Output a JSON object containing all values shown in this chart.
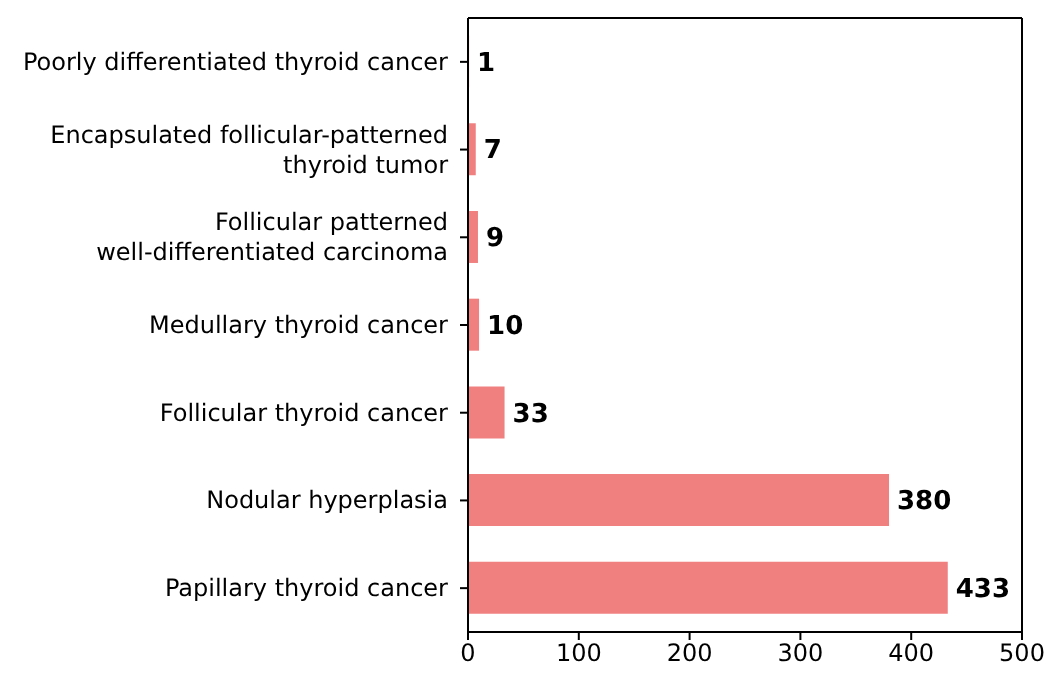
{
  "chart_data": {
    "type": "bar",
    "orientation": "horizontal",
    "categories": [
      "Poorly differentiated thyroid cancer",
      "Encapsulated follicular-patterned\nthyroid tumor",
      "Follicular patterned\nwell-differentiated carcinoma",
      "Medullary thyroid cancer",
      "Follicular thyroid cancer",
      "Nodular hyperplasia",
      "Papillary thyroid cancer"
    ],
    "values": [
      1,
      7,
      9,
      10,
      33,
      380,
      433
    ],
    "color": "#f08080",
    "xlim": [
      0,
      500
    ],
    "xticks": [
      0,
      100,
      200,
      300,
      400,
      500
    ],
    "data_labels": true,
    "grid": false,
    "legend": false
  }
}
